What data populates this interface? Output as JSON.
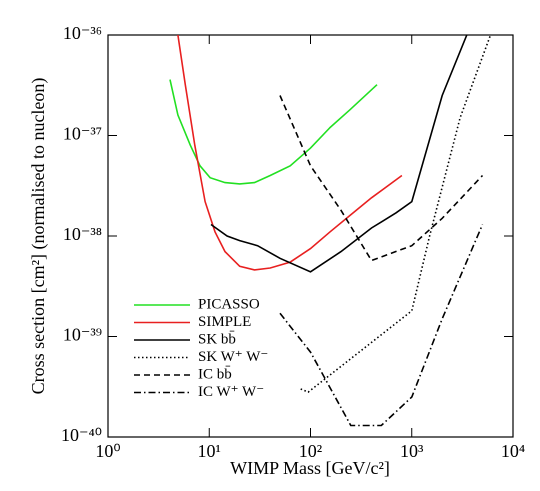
{
  "chart_data": {
    "type": "line",
    "xlabel": "WIMP Mass [GeV/c²]",
    "ylabel": "Cross section [cm²] (normalised to nucleon)",
    "xscale": "log",
    "yscale": "log",
    "xlim": [
      1,
      10000
    ],
    "ylim": [
      1e-40,
      1e-36
    ],
    "xticks": [
      {
        "value": 1,
        "label": "10⁰"
      },
      {
        "value": 10,
        "label": "10¹"
      },
      {
        "value": 100,
        "label": "10²"
      },
      {
        "value": 1000,
        "label": "10³"
      },
      {
        "value": 10000,
        "label": "10⁴"
      }
    ],
    "yticks": [
      {
        "value": 1e-40,
        "label": "10⁻⁴⁰"
      },
      {
        "value": 1e-39,
        "label": "10⁻³⁹"
      },
      {
        "value": 1e-38,
        "label": "10⁻³⁸"
      },
      {
        "value": 1e-37,
        "label": "10⁻³⁷"
      },
      {
        "value": 1e-36,
        "label": "10⁻³⁶"
      }
    ],
    "grid": false,
    "legend": "lower left",
    "series": [
      {
        "name": "PICASSO",
        "color": "#22e022",
        "linestyle": "solid",
        "x": [
          4.1,
          4.9,
          6.5,
          8.1,
          10.2,
          14.3,
          20,
          28,
          40,
          63,
          100,
          156,
          245,
          454
        ],
        "values": [
          3.6e-37,
          1.6e-37,
          8e-38,
          5e-38,
          3.8e-38,
          3.4e-38,
          3.3e-38,
          3.4e-38,
          4e-38,
          5e-38,
          7.5e-38,
          1.2e-37,
          1.8e-37,
          3.2e-37
        ]
      },
      {
        "name": "SIMPLE",
        "color": "#e82020",
        "linestyle": "solid",
        "x": [
          4.9,
          5.8,
          7.2,
          9.1,
          11.4,
          14.3,
          20,
          28,
          40,
          63,
          100,
          156,
          245,
          400,
          800
        ],
        "values": [
          1e-36,
          3.2e-37,
          8e-38,
          2.2e-38,
          1.1e-38,
          7e-39,
          5e-39,
          4.6e-39,
          4.8e-39,
          5.5e-39,
          7.5e-39,
          1.1e-38,
          1.6e-38,
          2.4e-38,
          4e-38
        ]
      },
      {
        "name": "SK bb̄",
        "color": "#000000",
        "linestyle": "solid",
        "x": [
          10.4,
          15,
          20,
          30,
          50,
          100,
          200,
          400,
          700,
          1000,
          2000,
          3500
        ],
        "values": [
          1.3e-38,
          1e-38,
          9e-39,
          8e-39,
          6e-39,
          4.4e-39,
          7e-39,
          1.2e-38,
          1.7e-38,
          2.2e-38,
          2.5e-37,
          1e-36
        ]
      },
      {
        "name": "SK W⁺ W⁻",
        "color": "#000000",
        "linestyle": "dotted",
        "x": [
          80,
          95,
          1000,
          1500,
          3000,
          6000
        ],
        "values": [
          3e-40,
          2.8e-40,
          1.8e-39,
          1e-38,
          1.5e-37,
          1e-36
        ]
      },
      {
        "name": "IC bb̄",
        "color": "#000000",
        "linestyle": "dashed",
        "x": [
          50,
          100,
          200,
          400,
          1000,
          2000,
          5000
        ],
        "values": [
          2.5e-37,
          5e-38,
          1.8e-38,
          5.7e-39,
          8e-39,
          1.5e-38,
          4e-38
        ]
      },
      {
        "name": "IC W⁺ W⁻",
        "color": "#000000",
        "linestyle": "dashdot",
        "x": [
          50,
          100,
          250,
          500,
          1000,
          2000,
          5000
        ],
        "values": [
          1.7e-39,
          7e-40,
          1.3e-40,
          1.3e-40,
          2.5e-40,
          1.5e-39,
          1.3e-38
        ]
      }
    ]
  }
}
